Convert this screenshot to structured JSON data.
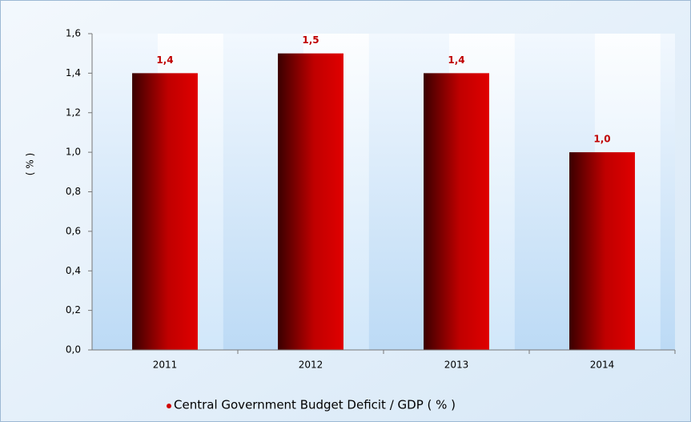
{
  "chart_data": {
    "type": "bar",
    "categories": [
      "2011",
      "2012",
      "2013",
      "2014"
    ],
    "series": [
      {
        "name": "Central Government  Budget Deficit / GDP ( % )",
        "color": "#d10000",
        "values": [
          1.4,
          1.5,
          1.4,
          1.0
        ],
        "value_labels": [
          "1,4",
          "1,5",
          "1,4",
          "1,0"
        ]
      }
    ],
    "ylabel": "( % )",
    "ylim": [
      0,
      1.6
    ],
    "yticks": [
      {
        "value": 0,
        "label": "0,0"
      },
      {
        "value": 0.2,
        "label": "0,2"
      },
      {
        "value": 0.4,
        "label": "0,4"
      },
      {
        "value": 0.6,
        "label": "0,6"
      },
      {
        "value": 0.8,
        "label": "0,8"
      },
      {
        "value": 1.0,
        "label": "1,0"
      },
      {
        "value": 1.2,
        "label": "1,2"
      },
      {
        "value": 1.4,
        "label": "1,4"
      },
      {
        "value": 1.6,
        "label": "1,6"
      }
    ],
    "legend": "bottom"
  }
}
